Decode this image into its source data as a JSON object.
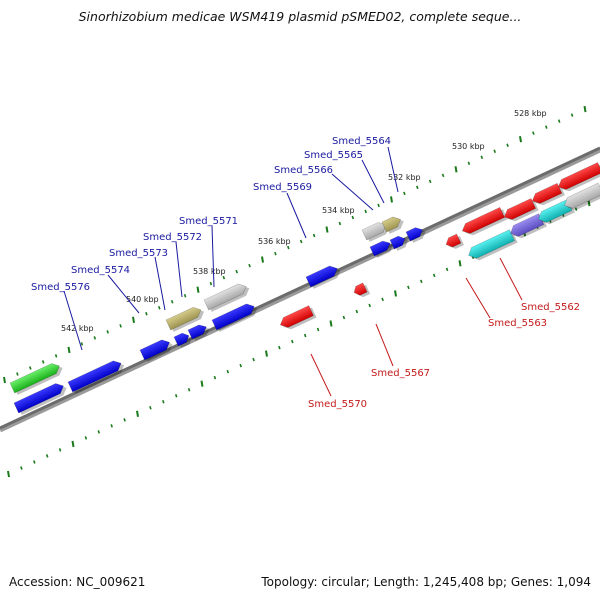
{
  "title": "Sinorhizobium medicae WSM419 plasmid pSMED02, complete seque...",
  "footer": {
    "accession": "Accession: NC_009621",
    "topology": "Topology: circular; Length: 1,245,408 bp; Genes: 1,094"
  },
  "colors": {
    "backbone": "#777777",
    "ticks": "#1b7a1b",
    "forward_gene": "#1010e0",
    "reverse_gene": "#e01010",
    "label_forward": "#1a1aa0",
    "label_reverse": "#c41a1a"
  },
  "scale_labels": [
    "528 kbp",
    "530 kbp",
    "532 kbp",
    "534 kbp",
    "536 kbp",
    "538 kbp",
    "540 kbp",
    "542 kbp"
  ],
  "forward_gene_labels": [
    "Smed_5564",
    "Smed_5565",
    "Smed_5566",
    "Smed_5569",
    "Smed_5571",
    "Smed_5572",
    "Smed_5573",
    "Smed_5574",
    "Smed_5576"
  ],
  "reverse_gene_labels": [
    "Smed_5562",
    "Smed_5563",
    "Smed_5567",
    "Smed_5570"
  ]
}
